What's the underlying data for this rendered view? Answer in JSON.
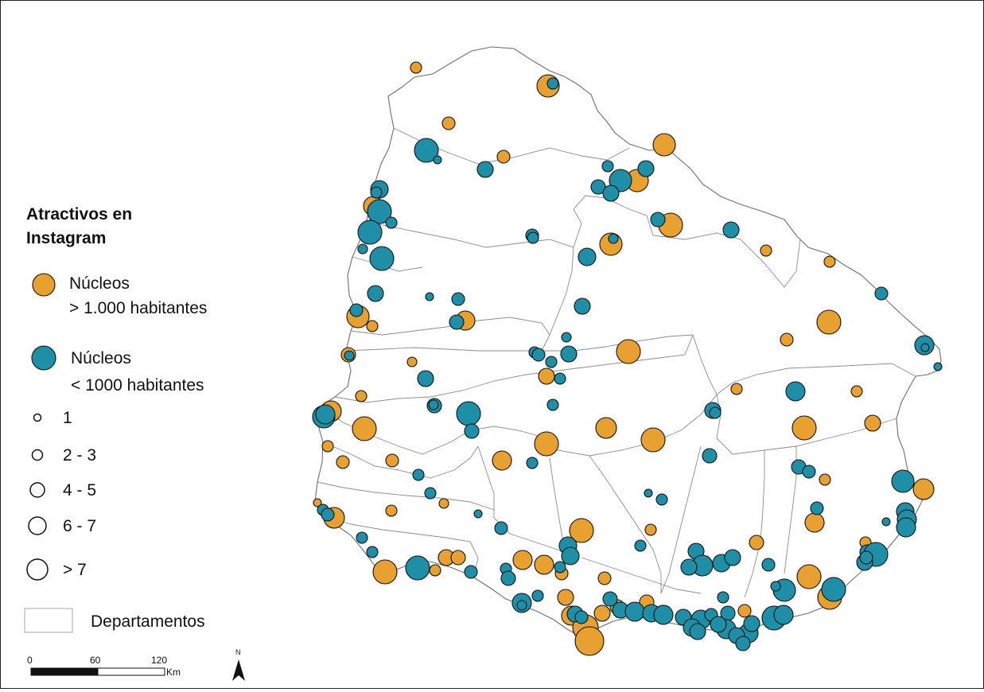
{
  "colors": {
    "large_nucleus": "#E8A030",
    "small_nucleus": "#1F8FA8",
    "boundary": "#8c8c8c"
  },
  "legend": {
    "title_line1": "Atractivos en",
    "title_line2": "Instagram",
    "category_large_line1": "Núcleos",
    "category_large_line2": "> 1.000 habitantes",
    "category_small_line1": "Núcleos",
    "category_small_line2": "< 1000 habitantes",
    "size_classes": [
      "1",
      "2 - 3",
      "4 - 5",
      "6 - 7",
      "> 7"
    ],
    "departments_label": "Departamentos"
  },
  "scale_bar": {
    "tick_labels": [
      "0",
      "60",
      "120"
    ],
    "unit": "Km"
  },
  "north_arrow": {
    "label": "N",
    "icon": "north-arrow-icon"
  }
}
